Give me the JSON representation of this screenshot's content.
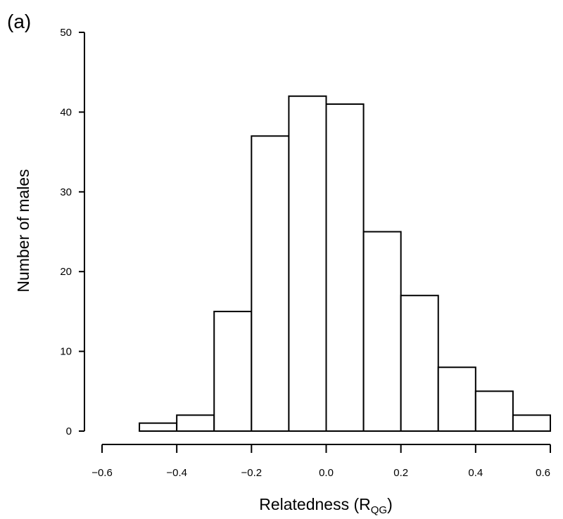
{
  "panel_label": "(a)",
  "chart_data": {
    "type": "bar",
    "bins": [
      {
        "x0": -0.5,
        "x1": -0.4,
        "value": 1
      },
      {
        "x0": -0.4,
        "x1": -0.3,
        "value": 2
      },
      {
        "x0": -0.3,
        "x1": -0.2,
        "value": 15
      },
      {
        "x0": -0.2,
        "x1": -0.1,
        "value": 37
      },
      {
        "x0": -0.1,
        "x1": 0.0,
        "value": 42
      },
      {
        "x0": 0.0,
        "x1": 0.1,
        "value": 41
      },
      {
        "x0": 0.1,
        "x1": 0.2,
        "value": 25
      },
      {
        "x0": 0.2,
        "x1": 0.3,
        "value": 17
      },
      {
        "x0": 0.3,
        "x1": 0.4,
        "value": 8
      },
      {
        "x0": 0.4,
        "x1": 0.5,
        "value": 5
      },
      {
        "x0": 0.5,
        "x1": 0.6,
        "value": 2
      }
    ],
    "xlabel_main": "Relatedness (R",
    "xlabel_sub": "QG",
    "xlabel_close": ")",
    "ylabel": "Number of males",
    "xlim": [
      -0.6,
      0.6
    ],
    "ylim": [
      0,
      50
    ],
    "xticks": [
      "−0.6",
      "−0.4",
      "−0.2",
      "0.0",
      "0.2",
      "0.4",
      "0.6"
    ],
    "xtick_values": [
      -0.6,
      -0.4,
      -0.2,
      0.0,
      0.2,
      0.4,
      0.6
    ],
    "yticks": [
      "0",
      "10",
      "20",
      "30",
      "40",
      "50"
    ],
    "ytick_values": [
      0,
      10,
      20,
      30,
      40,
      50
    ],
    "grid": false,
    "legend": "none"
  }
}
